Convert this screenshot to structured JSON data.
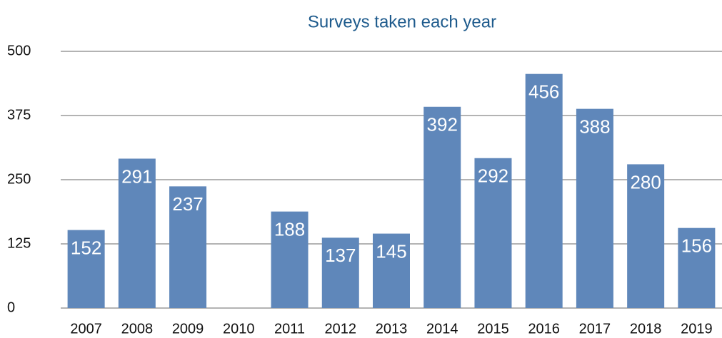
{
  "chart_data": {
    "type": "bar",
    "title": "Surveys taken each year",
    "categories": [
      "2007",
      "2008",
      "2009",
      "2010",
      "2011",
      "2012",
      "2013",
      "2014",
      "2015",
      "2016",
      "2017",
      "2018",
      "2019"
    ],
    "values": [
      152,
      291,
      237,
      null,
      188,
      137,
      145,
      392,
      292,
      456,
      388,
      280,
      156
    ],
    "color": "#5f87ba",
    "ylim": [
      0,
      500
    ],
    "yticks": [
      0,
      125,
      250,
      375,
      500
    ],
    "grid": true
  }
}
